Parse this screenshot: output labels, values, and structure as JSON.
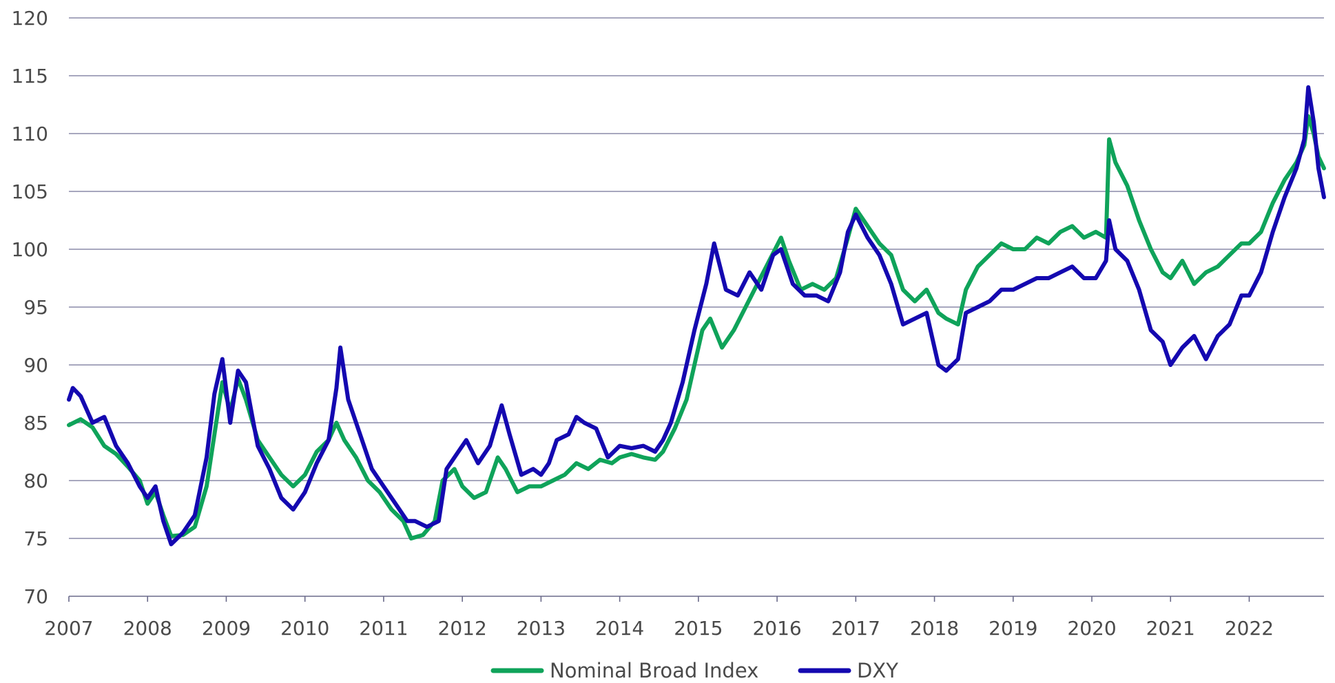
{
  "chart_data": {
    "type": "line",
    "title": "",
    "xlabel": "",
    "ylabel": "",
    "x_ticks": [
      "2007",
      "2008",
      "2009",
      "2010",
      "2011",
      "2012",
      "2013",
      "2014",
      "2015",
      "2016",
      "2017",
      "2018",
      "2019",
      "2020",
      "2021",
      "2022"
    ],
    "y_ticks": [
      "70",
      "75",
      "80",
      "85",
      "90",
      "95",
      "100",
      "105",
      "110",
      "115",
      "120"
    ],
    "xlim": [
      2007,
      2022.95
    ],
    "ylim": [
      70,
      120
    ],
    "grid": "horizontal",
    "legend_position": "bottom-center",
    "series": [
      {
        "name": "Nominal Broad Index",
        "color": "#0fa35a",
        "points": [
          [
            2007.0,
            84.8
          ],
          [
            2007.15,
            85.3
          ],
          [
            2007.3,
            84.6
          ],
          [
            2007.45,
            83.0
          ],
          [
            2007.6,
            82.3
          ],
          [
            2007.75,
            81.2
          ],
          [
            2007.9,
            80.0
          ],
          [
            2008.0,
            78.0
          ],
          [
            2008.1,
            79.0
          ],
          [
            2008.2,
            77.0
          ],
          [
            2008.3,
            75.2
          ],
          [
            2008.45,
            75.3
          ],
          [
            2008.6,
            76.0
          ],
          [
            2008.75,
            79.5
          ],
          [
            2008.85,
            84.0
          ],
          [
            2008.95,
            88.5
          ],
          [
            2009.05,
            86.0
          ],
          [
            2009.15,
            88.8
          ],
          [
            2009.25,
            87.0
          ],
          [
            2009.4,
            83.5
          ],
          [
            2009.55,
            82.0
          ],
          [
            2009.7,
            80.5
          ],
          [
            2009.85,
            79.5
          ],
          [
            2010.0,
            80.5
          ],
          [
            2010.15,
            82.5
          ],
          [
            2010.3,
            83.5
          ],
          [
            2010.4,
            85.0
          ],
          [
            2010.5,
            83.5
          ],
          [
            2010.65,
            82.0
          ],
          [
            2010.8,
            80.0
          ],
          [
            2010.95,
            79.0
          ],
          [
            2011.1,
            77.5
          ],
          [
            2011.25,
            76.5
          ],
          [
            2011.35,
            75.0
          ],
          [
            2011.5,
            75.3
          ],
          [
            2011.65,
            76.5
          ],
          [
            2011.75,
            80.0
          ],
          [
            2011.9,
            81.0
          ],
          [
            2012.0,
            79.5
          ],
          [
            2012.15,
            78.5
          ],
          [
            2012.3,
            79.0
          ],
          [
            2012.45,
            82.0
          ],
          [
            2012.55,
            81.0
          ],
          [
            2012.7,
            79.0
          ],
          [
            2012.85,
            79.5
          ],
          [
            2013.0,
            79.5
          ],
          [
            2013.15,
            80.0
          ],
          [
            2013.3,
            80.5
          ],
          [
            2013.45,
            81.5
          ],
          [
            2013.6,
            81.0
          ],
          [
            2013.75,
            81.8
          ],
          [
            2013.9,
            81.5
          ],
          [
            2014.0,
            82.0
          ],
          [
            2014.15,
            82.3
          ],
          [
            2014.3,
            82.0
          ],
          [
            2014.45,
            81.8
          ],
          [
            2014.55,
            82.5
          ],
          [
            2014.7,
            84.5
          ],
          [
            2014.85,
            87.0
          ],
          [
            2014.95,
            90.0
          ],
          [
            2015.05,
            93.0
          ],
          [
            2015.15,
            94.0
          ],
          [
            2015.3,
            91.5
          ],
          [
            2015.45,
            93.0
          ],
          [
            2015.6,
            95.0
          ],
          [
            2015.75,
            97.0
          ],
          [
            2015.9,
            99.0
          ],
          [
            2016.05,
            101.0
          ],
          [
            2016.15,
            99.0
          ],
          [
            2016.3,
            96.5
          ],
          [
            2016.45,
            97.0
          ],
          [
            2016.6,
            96.5
          ],
          [
            2016.75,
            97.5
          ],
          [
            2016.9,
            101.0
          ],
          [
            2017.0,
            103.5
          ],
          [
            2017.15,
            102.0
          ],
          [
            2017.3,
            100.5
          ],
          [
            2017.45,
            99.5
          ],
          [
            2017.6,
            96.5
          ],
          [
            2017.75,
            95.5
          ],
          [
            2017.9,
            96.5
          ],
          [
            2018.05,
            94.5
          ],
          [
            2018.15,
            94.0
          ],
          [
            2018.3,
            93.5
          ],
          [
            2018.4,
            96.5
          ],
          [
            2018.55,
            98.5
          ],
          [
            2018.7,
            99.5
          ],
          [
            2018.85,
            100.5
          ],
          [
            2019.0,
            100.0
          ],
          [
            2019.15,
            100.0
          ],
          [
            2019.3,
            101.0
          ],
          [
            2019.45,
            100.5
          ],
          [
            2019.6,
            101.5
          ],
          [
            2019.75,
            102.0
          ],
          [
            2019.9,
            101.0
          ],
          [
            2020.05,
            101.5
          ],
          [
            2020.18,
            101.0
          ],
          [
            2020.22,
            109.5
          ],
          [
            2020.3,
            107.5
          ],
          [
            2020.45,
            105.5
          ],
          [
            2020.6,
            102.5
          ],
          [
            2020.75,
            100.0
          ],
          [
            2020.9,
            98.0
          ],
          [
            2021.0,
            97.5
          ],
          [
            2021.15,
            99.0
          ],
          [
            2021.3,
            97.0
          ],
          [
            2021.45,
            98.0
          ],
          [
            2021.6,
            98.5
          ],
          [
            2021.75,
            99.5
          ],
          [
            2021.9,
            100.5
          ],
          [
            2022.0,
            100.5
          ],
          [
            2022.15,
            101.5
          ],
          [
            2022.3,
            104.0
          ],
          [
            2022.45,
            106.0
          ],
          [
            2022.6,
            107.5
          ],
          [
            2022.7,
            109.0
          ],
          [
            2022.75,
            111.5
          ],
          [
            2022.82,
            110.0
          ],
          [
            2022.88,
            108.0
          ],
          [
            2022.95,
            107.0
          ]
        ]
      },
      {
        "name": "DXY",
        "color": "#1408b0",
        "points": [
          [
            2007.0,
            87.0
          ],
          [
            2007.05,
            88.0
          ],
          [
            2007.15,
            87.3
          ],
          [
            2007.3,
            85.0
          ],
          [
            2007.45,
            85.5
          ],
          [
            2007.6,
            83.0
          ],
          [
            2007.75,
            81.5
          ],
          [
            2007.9,
            79.5
          ],
          [
            2008.0,
            78.5
          ],
          [
            2008.1,
            79.5
          ],
          [
            2008.2,
            76.5
          ],
          [
            2008.3,
            74.5
          ],
          [
            2008.45,
            75.5
          ],
          [
            2008.6,
            77.0
          ],
          [
            2008.75,
            82.0
          ],
          [
            2008.85,
            87.5
          ],
          [
            2008.95,
            90.5
          ],
          [
            2009.05,
            85.0
          ],
          [
            2009.15,
            89.5
          ],
          [
            2009.25,
            88.5
          ],
          [
            2009.4,
            83.0
          ],
          [
            2009.55,
            81.0
          ],
          [
            2009.7,
            78.5
          ],
          [
            2009.85,
            77.5
          ],
          [
            2010.0,
            79.0
          ],
          [
            2010.15,
            81.5
          ],
          [
            2010.3,
            83.5
          ],
          [
            2010.4,
            88.0
          ],
          [
            2010.45,
            91.5
          ],
          [
            2010.55,
            87.0
          ],
          [
            2010.7,
            84.0
          ],
          [
            2010.85,
            81.0
          ],
          [
            2011.0,
            79.5
          ],
          [
            2011.15,
            78.0
          ],
          [
            2011.3,
            76.5
          ],
          [
            2011.4,
            76.5
          ],
          [
            2011.55,
            76.0
          ],
          [
            2011.7,
            76.5
          ],
          [
            2011.8,
            81.0
          ],
          [
            2011.95,
            82.5
          ],
          [
            2012.05,
            83.5
          ],
          [
            2012.2,
            81.5
          ],
          [
            2012.35,
            83.0
          ],
          [
            2012.5,
            86.5
          ],
          [
            2012.6,
            84.0
          ],
          [
            2012.75,
            80.5
          ],
          [
            2012.9,
            81.0
          ],
          [
            2013.0,
            80.5
          ],
          [
            2013.1,
            81.5
          ],
          [
            2013.2,
            83.5
          ],
          [
            2013.35,
            84.0
          ],
          [
            2013.45,
            85.5
          ],
          [
            2013.55,
            85.0
          ],
          [
            2013.7,
            84.5
          ],
          [
            2013.85,
            82.0
          ],
          [
            2014.0,
            83.0
          ],
          [
            2014.15,
            82.8
          ],
          [
            2014.3,
            83.0
          ],
          [
            2014.45,
            82.5
          ],
          [
            2014.55,
            83.5
          ],
          [
            2014.65,
            85.0
          ],
          [
            2014.8,
            88.5
          ],
          [
            2014.95,
            93.0
          ],
          [
            2015.1,
            97.0
          ],
          [
            2015.2,
            100.5
          ],
          [
            2015.35,
            96.5
          ],
          [
            2015.5,
            96.0
          ],
          [
            2015.65,
            98.0
          ],
          [
            2015.8,
            96.5
          ],
          [
            2015.95,
            99.5
          ],
          [
            2016.05,
            100.0
          ],
          [
            2016.2,
            97.0
          ],
          [
            2016.35,
            96.0
          ],
          [
            2016.5,
            96.0
          ],
          [
            2016.65,
            95.5
          ],
          [
            2016.8,
            98.0
          ],
          [
            2016.9,
            101.5
          ],
          [
            2017.0,
            103.0
          ],
          [
            2017.15,
            101.0
          ],
          [
            2017.3,
            99.5
          ],
          [
            2017.45,
            97.0
          ],
          [
            2017.6,
            93.5
          ],
          [
            2017.75,
            94.0
          ],
          [
            2017.9,
            94.5
          ],
          [
            2018.05,
            90.0
          ],
          [
            2018.15,
            89.5
          ],
          [
            2018.3,
            90.5
          ],
          [
            2018.4,
            94.5
          ],
          [
            2018.55,
            95.0
          ],
          [
            2018.7,
            95.5
          ],
          [
            2018.85,
            96.5
          ],
          [
            2019.0,
            96.5
          ],
          [
            2019.15,
            97.0
          ],
          [
            2019.3,
            97.5
          ],
          [
            2019.45,
            97.5
          ],
          [
            2019.6,
            98.0
          ],
          [
            2019.75,
            98.5
          ],
          [
            2019.9,
            97.5
          ],
          [
            2020.05,
            97.5
          ],
          [
            2020.18,
            99.0
          ],
          [
            2020.22,
            102.5
          ],
          [
            2020.3,
            100.0
          ],
          [
            2020.45,
            99.0
          ],
          [
            2020.6,
            96.5
          ],
          [
            2020.75,
            93.0
          ],
          [
            2020.9,
            92.0
          ],
          [
            2021.0,
            90.0
          ],
          [
            2021.15,
            91.5
          ],
          [
            2021.3,
            92.5
          ],
          [
            2021.45,
            90.5
          ],
          [
            2021.6,
            92.5
          ],
          [
            2021.75,
            93.5
          ],
          [
            2021.9,
            96.0
          ],
          [
            2022.0,
            96.0
          ],
          [
            2022.15,
            98.0
          ],
          [
            2022.3,
            101.5
          ],
          [
            2022.45,
            104.5
          ],
          [
            2022.6,
            107.0
          ],
          [
            2022.7,
            109.5
          ],
          [
            2022.75,
            114.0
          ],
          [
            2022.82,
            111.0
          ],
          [
            2022.88,
            107.0
          ],
          [
            2022.95,
            104.5
          ]
        ]
      }
    ]
  }
}
